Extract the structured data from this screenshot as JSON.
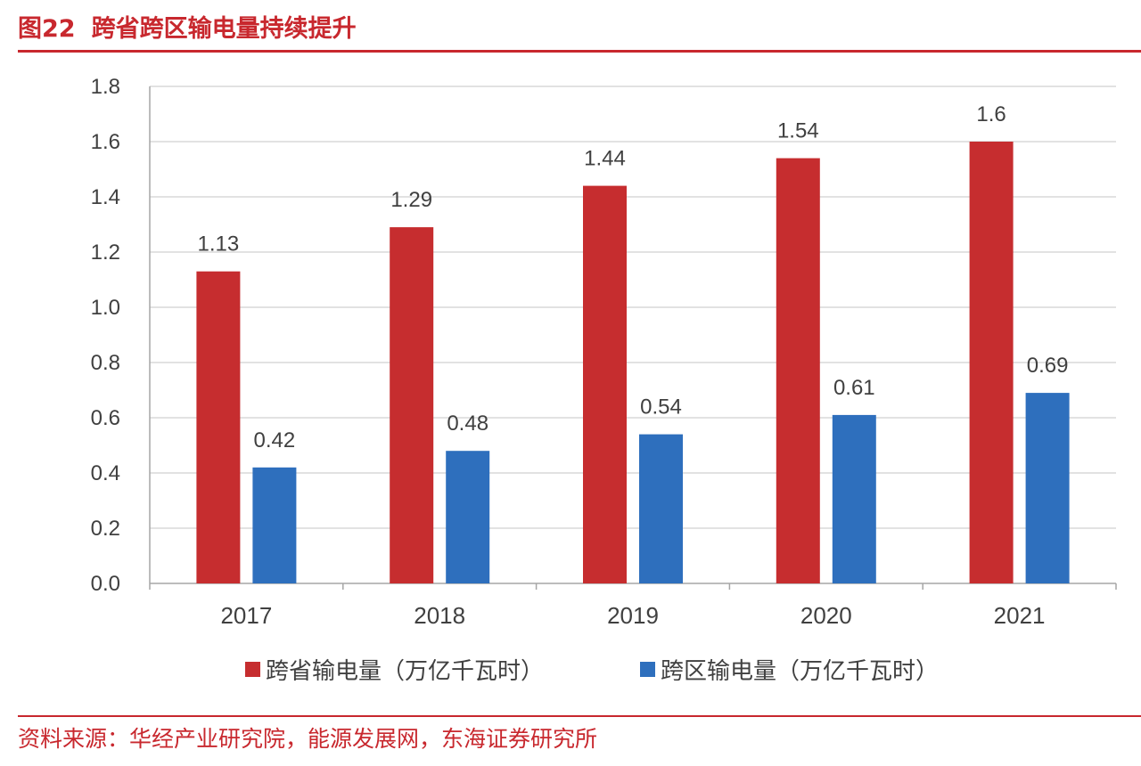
{
  "figure": {
    "number": "图22",
    "title": "跨省跨区输电量持续提升",
    "source": "资料来源：华经产业研究院，能源发展网，东海证券研究所"
  },
  "colors": {
    "accent": "#c8282e",
    "series_red": "#c62d2f",
    "series_blue": "#2e6fbd",
    "grid": "#d9d9d9",
    "axis": "#a6a6a6",
    "text": "#404040"
  },
  "chart_data": {
    "type": "bar",
    "title": "",
    "xlabel": "",
    "ylabel": "",
    "categories": [
      "2017",
      "2018",
      "2019",
      "2020",
      "2021"
    ],
    "series": [
      {
        "name": "跨省输电量（万亿千瓦时）",
        "values": [
          1.13,
          1.29,
          1.44,
          1.54,
          1.6
        ],
        "color": "#c62d2f"
      },
      {
        "name": "跨区输电量（万亿千瓦时）",
        "values": [
          0.42,
          0.48,
          0.54,
          0.61,
          0.69
        ],
        "color": "#2e6fbd"
      }
    ],
    "data_labels": [
      [
        "1.13",
        "1.29",
        "1.44",
        "1.54",
        "1.6"
      ],
      [
        "0.42",
        "0.48",
        "0.54",
        "0.61",
        "0.69"
      ]
    ],
    "ylim": [
      0,
      1.8
    ],
    "yticks": [
      "0.0",
      "0.2",
      "0.4",
      "0.6",
      "0.8",
      "1.0",
      "1.2",
      "1.4",
      "1.6",
      "1.8"
    ],
    "grid": true,
    "legend": "bottom"
  }
}
